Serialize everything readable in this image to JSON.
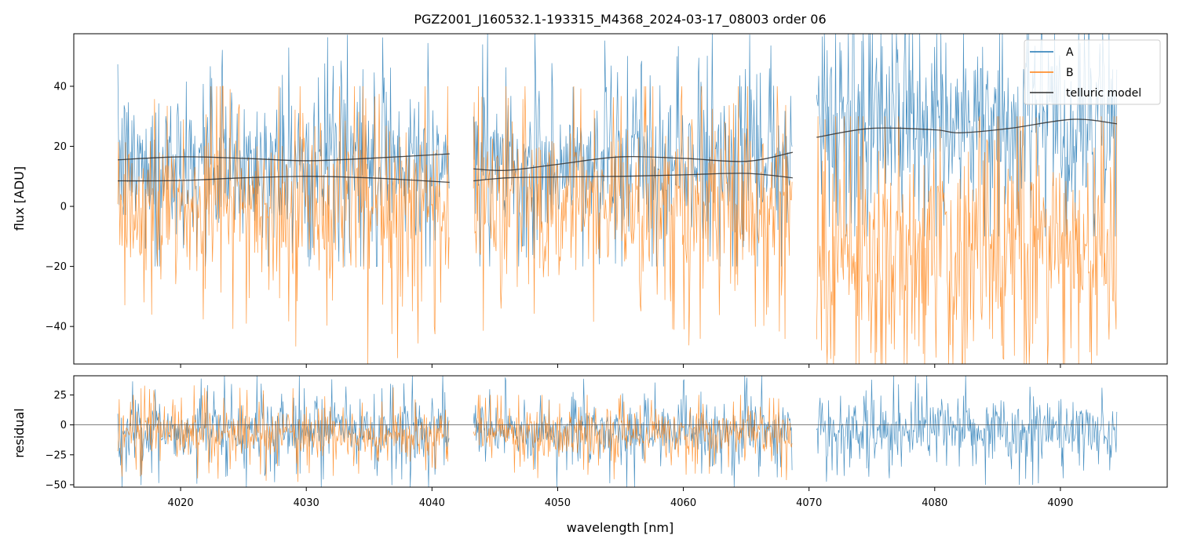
{
  "chart_data": [
    {
      "type": "line",
      "title": "PGZ2001_J160532.1-193315_M4368_2024-03-17_08003  order 06",
      "xlabel": "",
      "ylabel": "flux [ADU]",
      "xlim": [
        4011.5,
        4098.5
      ],
      "ylim": [
        -52.5,
        57.5
      ],
      "yticks": [
        40,
        20,
        0,
        -20,
        -40
      ],
      "ytick_labels": [
        "40",
        "20",
        "0",
        "−20",
        "−40"
      ],
      "xticks": [
        4020,
        4030,
        4040,
        4050,
        4060,
        4070,
        4080,
        4090
      ],
      "segments": [
        [
          4015.0,
          4041.4
        ],
        [
          4043.3,
          4068.7
        ],
        [
          4070.6,
          4094.5
        ]
      ],
      "legend": {
        "position": "top-right",
        "entries": [
          "A",
          "B",
          "telluric model"
        ]
      },
      "series": [
        {
          "name": "A",
          "color": "#1f77b4",
          "noise": [
            {
              "segment": 0,
              "mean": 14,
              "spread": 16,
              "min": -20,
              "max": 57.5
            },
            {
              "segment": 1,
              "mean": 14,
              "spread": 16,
              "min": -20,
              "max": 57.5
            },
            {
              "segment": 2,
              "mean": 28,
              "spread": 22,
              "min": -10,
              "max": 57.5
            }
          ]
        },
        {
          "name": "B",
          "color": "#ff7f0e",
          "noise": [
            {
              "segment": 0,
              "mean": 0,
              "spread": 18,
              "min": -52.5,
              "max": 40
            },
            {
              "segment": 1,
              "mean": 2,
              "spread": 17,
              "min": -52.5,
              "max": 40
            },
            {
              "segment": 2,
              "mean": -15,
              "spread": 25,
              "min": -52.5,
              "max": 30
            }
          ]
        },
        {
          "name": "telluric model",
          "color": "#2f2f2f",
          "curves": [
            {
              "x": [
                4015.0,
                4020.0,
                4025.0,
                4030.0,
                4035.0,
                4041.4
              ],
              "y": [
                15.5,
                16.5,
                16.0,
                15.2,
                16.0,
                17.5
              ]
            },
            {
              "x": [
                4015.0,
                4020.0,
                4025.0,
                4030.0,
                4035.0,
                4041.4
              ],
              "y": [
                8.5,
                8.6,
                9.5,
                10.0,
                9.5,
                8.0
              ]
            },
            {
              "x": [
                4043.3,
                4046.0,
                4050.0,
                4055.0,
                4060.0,
                4065.0,
                4068.7
              ],
              "y": [
                12.5,
                12.0,
                14.0,
                16.5,
                16.0,
                15.0,
                18.0
              ]
            },
            {
              "x": [
                4043.3,
                4046.0,
                4050.0,
                4055.0,
                4060.0,
                4065.0,
                4068.7
              ],
              "y": [
                8.5,
                9.5,
                9.8,
                10.0,
                10.5,
                11.0,
                9.5
              ]
            },
            {
              "x": [
                4070.6,
                4075.0,
                4080.0,
                4082.0,
                4086.0,
                4091.0,
                4094.5
              ],
              "y": [
                23.0,
                26.0,
                25.5,
                24.5,
                26.0,
                29.0,
                27.5
              ]
            }
          ]
        }
      ]
    },
    {
      "type": "line",
      "title": "",
      "xlabel": "wavelength [nm]",
      "ylabel": "residual",
      "xlim": [
        4011.5,
        4098.5
      ],
      "ylim": [
        -52,
        41
      ],
      "yticks": [
        25,
        0,
        -25,
        -50
      ],
      "ytick_labels": [
        "25",
        "0",
        "−25",
        "−50"
      ],
      "xticks": [
        4020,
        4030,
        4040,
        4050,
        4060,
        4070,
        4080,
        4090
      ],
      "xtick_labels": [
        "4020",
        "4030",
        "4040",
        "4050",
        "4060",
        "4070",
        "4080",
        "4090"
      ],
      "zero_line": 0,
      "series": [
        {
          "name": "A",
          "color": "#1f77b4",
          "noise": [
            {
              "segment": 0,
              "mean": -5,
              "spread": 17,
              "min": -52,
              "max": 41
            },
            {
              "segment": 1,
              "mean": -5,
              "spread": 17,
              "min": -52,
              "max": 41
            },
            {
              "segment": 2,
              "mean": -5,
              "spread": 17,
              "min": -50,
              "max": 41
            }
          ]
        },
        {
          "name": "B",
          "color": "#ff7f0e",
          "noise": [
            {
              "segment": 0,
              "mean": -8,
              "spread": 14,
              "min": -52,
              "max": 41
            },
            {
              "segment": 1,
              "mean": -8,
              "spread": 13,
              "min": -52,
              "max": 25
            }
          ]
        }
      ]
    }
  ]
}
